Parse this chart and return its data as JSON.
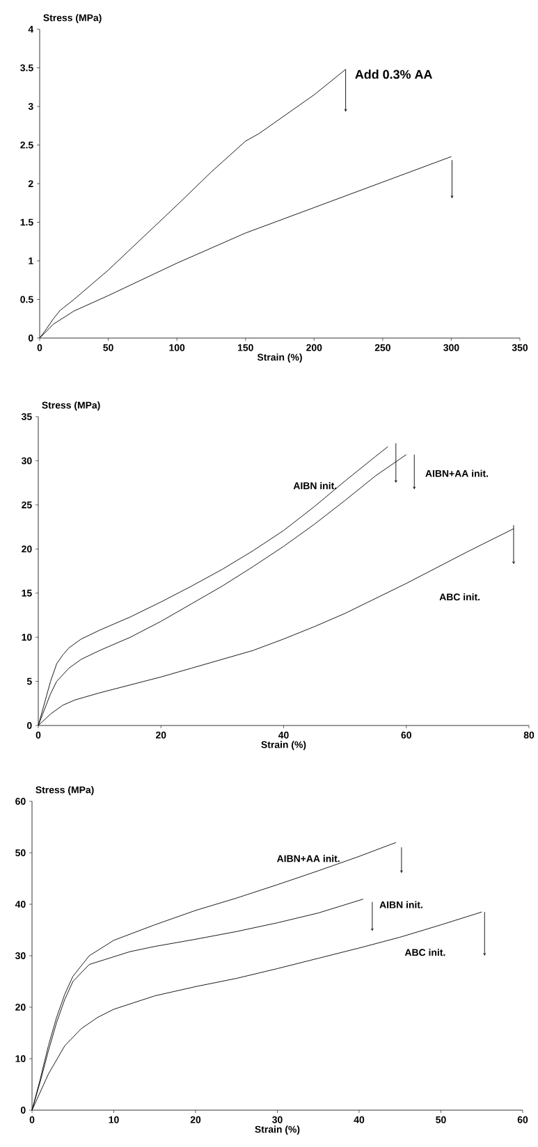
{
  "chart_data": [
    {
      "type": "line",
      "xlabel": "Strain (%)",
      "ylabel": "Stress (MPa)",
      "xlim": [
        0,
        350
      ],
      "ylim": [
        0,
        4
      ],
      "xticks": [
        0,
        50,
        100,
        150,
        200,
        250,
        300,
        350
      ],
      "yticks": [
        0,
        0.5,
        1,
        1.5,
        2,
        2.5,
        3,
        3.5,
        4
      ],
      "series": [
        {
          "name": "Add 0.3% AA",
          "color": "#000000",
          "x": [
            0,
            5,
            10,
            15,
            25,
            50,
            75,
            100,
            125,
            150,
            160,
            200,
            223
          ],
          "values": [
            0,
            0.12,
            0.25,
            0.36,
            0.5,
            0.88,
            1.3,
            1.72,
            2.15,
            2.55,
            2.65,
            3.15,
            3.48
          ]
        },
        {
          "color": "#000000",
          "x": [
            0,
            10,
            25,
            50,
            100,
            150,
            200,
            250,
            300
          ],
          "values": [
            0,
            0.18,
            0.35,
            0.55,
            0.97,
            1.36,
            1.69,
            2.02,
            2.35
          ]
        }
      ]
    },
    {
      "type": "line",
      "xlabel": "Strain (%)",
      "ylabel": "Stress (MPa)",
      "xlim": [
        0,
        80
      ],
      "ylim": [
        0,
        35
      ],
      "xticks": [
        0,
        20,
        40,
        60,
        80
      ],
      "yticks": [
        0,
        5,
        10,
        15,
        20,
        25,
        30,
        35
      ],
      "series": [
        {
          "name": "AIBN init.",
          "color": "#000000",
          "x": [
            0,
            1,
            2,
            3,
            4,
            5,
            7,
            10,
            15,
            20,
            25,
            30,
            35,
            40,
            45,
            50,
            55,
            57
          ],
          "values": [
            0,
            2.5,
            5,
            7,
            8,
            8.8,
            9.8,
            10.8,
            12.3,
            14,
            15.8,
            17.7,
            19.8,
            22.1,
            24.8,
            27.7,
            30.5,
            31.6
          ]
        },
        {
          "name": "AIBN+AA init.",
          "color": "#000000",
          "x": [
            0,
            1,
            2,
            3,
            5,
            7,
            10,
            15,
            20,
            25,
            30,
            35,
            40,
            45,
            50,
            55,
            60
          ],
          "values": [
            0,
            1.8,
            3.6,
            5,
            6.5,
            7.5,
            8.5,
            10,
            11.8,
            13.8,
            15.8,
            18,
            20.3,
            22.8,
            25.5,
            28.3,
            30.7
          ]
        },
        {
          "name": "ABC init.",
          "color": "#000000",
          "x": [
            0,
            2,
            4,
            6,
            10,
            15,
            20,
            25,
            30,
            35,
            40,
            45,
            50,
            55,
            60,
            65,
            70,
            77.5
          ],
          "values": [
            0,
            1.3,
            2.3,
            2.9,
            3.7,
            4.6,
            5.5,
            6.5,
            7.5,
            8.5,
            9.8,
            11.2,
            12.7,
            14.4,
            16.1,
            17.9,
            19.7,
            22.3
          ]
        }
      ]
    },
    {
      "type": "line",
      "xlabel": "Strain (%)",
      "ylabel": "Stress (MPa)",
      "xlim": [
        0,
        60
      ],
      "ylim": [
        0,
        60
      ],
      "xticks": [
        0,
        10,
        20,
        30,
        40,
        50,
        60
      ],
      "yticks": [
        0,
        10,
        20,
        30,
        40,
        50,
        60
      ],
      "series": [
        {
          "name": "AIBN+AA init.",
          "color": "#000000",
          "x": [
            0,
            1,
            2,
            3,
            4,
            5,
            7,
            10,
            15,
            20,
            25,
            30,
            35,
            40,
            44.5
          ],
          "values": [
            0,
            6,
            12.5,
            18,
            22.5,
            26,
            30,
            33,
            36,
            38.8,
            41.2,
            43.8,
            46.5,
            49.3,
            52
          ]
        },
        {
          "name": "AIBN init.",
          "color": "#000000",
          "x": [
            0,
            1,
            2,
            3,
            4,
            5,
            7,
            9,
            12,
            15,
            20,
            25,
            30,
            35,
            40.5
          ],
          "values": [
            0,
            5.5,
            11.5,
            17,
            21.5,
            25,
            28.3,
            29.3,
            30.8,
            31.8,
            33.2,
            34.7,
            36.4,
            38.3,
            41
          ]
        },
        {
          "name": "ABC init.",
          "color": "#000000",
          "x": [
            0,
            1,
            2,
            4,
            6,
            8,
            10,
            15,
            20,
            25,
            30,
            35,
            40,
            45,
            50,
            55
          ],
          "values": [
            0,
            3.5,
            7,
            12.5,
            15.8,
            18,
            19.6,
            22.2,
            24,
            25.6,
            27.5,
            29.5,
            31.5,
            33.6,
            36,
            38.5
          ]
        }
      ]
    }
  ]
}
